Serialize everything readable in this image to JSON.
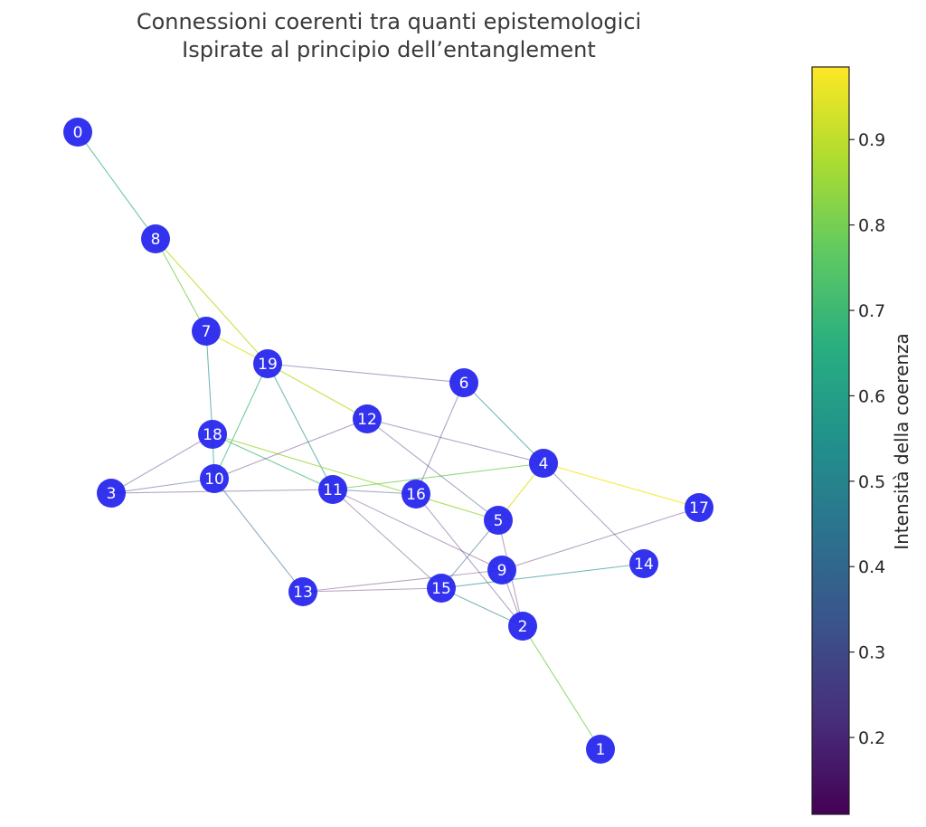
{
  "title": {
    "line1": "Connessioni coerenti tra quanti epistemologici",
    "line2": "Ispirate al principio dell’entanglement"
  },
  "colorbar": {
    "label": "Intensità della coerenza",
    "min": 0.11,
    "max": 0.985,
    "ticks": [
      "0.2",
      "0.3",
      "0.4",
      "0.5",
      "0.6",
      "0.7",
      "0.8",
      "0.9"
    ],
    "colormap": "viridis"
  },
  "node_color": "#2222ee",
  "node_labels": [
    "0",
    "1",
    "2",
    "3",
    "4",
    "5",
    "6",
    "7",
    "8",
    "9",
    "10",
    "11",
    "12",
    "13",
    "14",
    "15",
    "16",
    "17",
    "18",
    "19"
  ],
  "edges": [
    {
      "source": 0,
      "target": 8,
      "value": 0.65
    },
    {
      "source": 8,
      "target": 7,
      "value": 0.8
    },
    {
      "source": 8,
      "target": 19,
      "value": 0.9
    },
    {
      "source": 7,
      "target": 19,
      "value": 0.95
    },
    {
      "source": 7,
      "target": 18,
      "value": 0.55
    },
    {
      "source": 19,
      "target": 12,
      "value": 0.9
    },
    {
      "source": 19,
      "target": 6,
      "value": 0.25
    },
    {
      "source": 19,
      "target": 10,
      "value": 0.7
    },
    {
      "source": 19,
      "target": 11,
      "value": 0.55
    },
    {
      "source": 18,
      "target": 10,
      "value": 0.65
    },
    {
      "source": 18,
      "target": 3,
      "value": 0.2
    },
    {
      "source": 18,
      "target": 11,
      "value": 0.7
    },
    {
      "source": 18,
      "target": 5,
      "value": 0.85
    },
    {
      "source": 10,
      "target": 3,
      "value": 0.3
    },
    {
      "source": 10,
      "target": 12,
      "value": 0.15
    },
    {
      "source": 10,
      "target": 13,
      "value": 0.4
    },
    {
      "source": 3,
      "target": 11,
      "value": 0.2
    },
    {
      "source": 11,
      "target": 16,
      "value": 0.3
    },
    {
      "source": 11,
      "target": 4,
      "value": 0.8
    },
    {
      "source": 11,
      "target": 15,
      "value": 0.2
    },
    {
      "source": 11,
      "target": 9,
      "value": 0.15
    },
    {
      "source": 12,
      "target": 4,
      "value": 0.25
    },
    {
      "source": 12,
      "target": 5,
      "value": 0.3
    },
    {
      "source": 6,
      "target": 4,
      "value": 0.55
    },
    {
      "source": 6,
      "target": 16,
      "value": 0.3
    },
    {
      "source": 4,
      "target": 5,
      "value": 0.95
    },
    {
      "source": 4,
      "target": 17,
      "value": 0.98
    },
    {
      "source": 4,
      "target": 14,
      "value": 0.25
    },
    {
      "source": 16,
      "target": 2,
      "value": 0.2
    },
    {
      "source": 5,
      "target": 15,
      "value": 0.4
    },
    {
      "source": 5,
      "target": 2,
      "value": 0.15
    },
    {
      "source": 13,
      "target": 9,
      "value": 0.15
    },
    {
      "source": 13,
      "target": 15,
      "value": 0.12
    },
    {
      "source": 15,
      "target": 14,
      "value": 0.55
    },
    {
      "source": 15,
      "target": 2,
      "value": 0.5
    },
    {
      "source": 9,
      "target": 17,
      "value": 0.2
    },
    {
      "source": 9,
      "target": 2,
      "value": 0.15
    },
    {
      "source": 2,
      "target": 1,
      "value": 0.8
    }
  ]
}
